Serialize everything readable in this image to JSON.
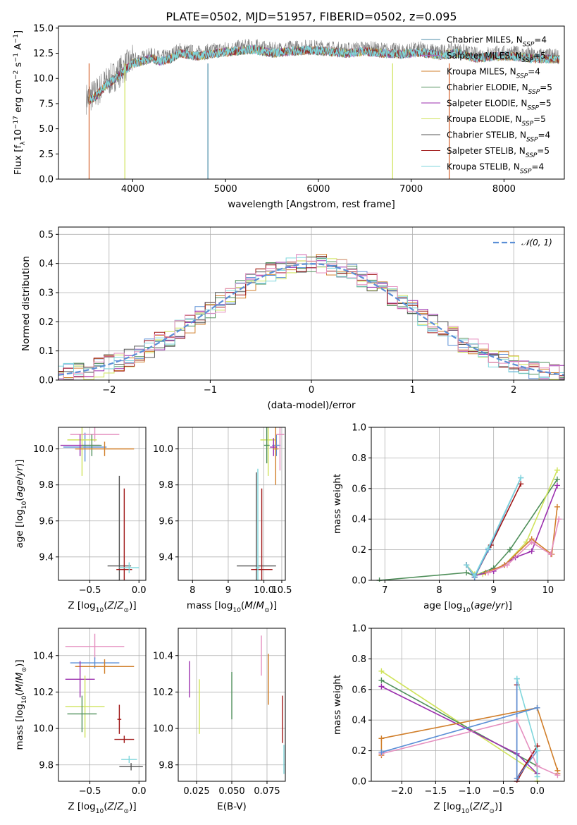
{
  "chart_data": [
    {
      "id": "spectrum",
      "type": "line",
      "title": "PLATE=0502, MJD=51957, FIBERID=0502, z=0.095",
      "xlabel": "wavelength [Angstrom, rest frame]",
      "ylabel": "Flux [f_λ 10^-17 erg cm^-2 s^-1 A^-1]",
      "xlim": [
        3200,
        8650
      ],
      "ylim": [
        0,
        15.2
      ],
      "xticks": [
        4000,
        5000,
        6000,
        7000,
        8000
      ],
      "yticks": [
        0.0,
        2.5,
        5.0,
        7.5,
        10.0,
        12.5,
        15.0
      ],
      "ytick_labels": [
        "0.0",
        "2.5",
        "5.0",
        "7.5",
        "10.0",
        "12.5",
        "15.0"
      ],
      "data_spectrum": {
        "name": "data",
        "color": "#7f7f7f",
        "x": [
          3500,
          3600,
          3700,
          3800,
          3900,
          4000,
          4100,
          4200,
          4300,
          4400,
          4500,
          4700,
          4900,
          5100,
          5300,
          5500,
          5700,
          5900,
          6100,
          6300,
          6500,
          6700,
          6900,
          7100,
          7300,
          7500,
          7700,
          7900,
          8100,
          8300,
          8600
        ],
        "y": [
          8.0,
          8.5,
          9.5,
          10.2,
          11.0,
          11.8,
          12.0,
          12.3,
          12.0,
          12.2,
          12.8,
          12.5,
          12.8,
          13.0,
          13.2,
          12.8,
          13.0,
          13.1,
          13.0,
          12.8,
          13.0,
          12.8,
          12.7,
          12.9,
          12.6,
          12.8,
          12.3,
          12.5,
          12.5,
          12.3,
          12.2
        ]
      },
      "legend_position": "upper right",
      "series": [
        {
          "name": "Chabrier MILES, N",
          "sub": "SSP",
          "tail": "=4",
          "color": "#4c8ea8"
        },
        {
          "name": "Salpeter MILES, N",
          "sub": "SSP",
          "tail": "=5",
          "color": "#a66ac1"
        },
        {
          "name": "Kroupa MILES, N",
          "sub": "SSP",
          "tail": "=4",
          "color": "#d17f2b"
        },
        {
          "name": "Chabrier ELODIE, N",
          "sub": "SSP",
          "tail": "=5",
          "color": "#4f8f5a"
        },
        {
          "name": "Salpeter ELODIE, N",
          "sub": "SSP",
          "tail": "=5",
          "color": "#9b2fae"
        },
        {
          "name": "Kroupa ELODIE, N",
          "sub": "SSP",
          "tail": "=5",
          "color": "#cfe35a"
        },
        {
          "name": "Chabrier STELIB, N",
          "sub": "SSP",
          "tail": "=4",
          "color": "#555555"
        },
        {
          "name": "Salpeter STELIB, N",
          "sub": "SSP",
          "tail": "=5",
          "color": "#a01818"
        },
        {
          "name": "Kroupa STELIB, N",
          "sub": "SSP",
          "tail": "=4",
          "color": "#7fd6dc"
        }
      ]
    },
    {
      "id": "residuals",
      "type": "line",
      "xlabel": "(data-model)/error",
      "ylabel": "Normed distribution",
      "xlim": [
        -2.5,
        2.5
      ],
      "ylim": [
        0,
        0.525
      ],
      "xticks": [
        -2,
        -1,
        0,
        1,
        2
      ],
      "xtick_labels": [
        "−2",
        "−1",
        "0",
        "1",
        "2"
      ],
      "yticks": [
        0.0,
        0.1,
        0.2,
        0.3,
        0.4,
        0.5
      ],
      "ytick_labels": [
        "0.0",
        "0.1",
        "0.2",
        "0.3",
        "0.4",
        "0.5"
      ],
      "grid": true,
      "legend_position": "upper right",
      "reference": {
        "name": "𝒩(0, 1)",
        "color": "#5b8fd6",
        "style": "dashed"
      },
      "bin_width": 0.1,
      "hist_colors": [
        "#5b8fd6",
        "#d17f2b",
        "#4f8f5a",
        "#9b2fae",
        "#cfe35a",
        "#555555",
        "#a01818",
        "#7fd6dc",
        "#e58fbf"
      ]
    },
    {
      "id": "age-metallicity",
      "type": "scatter",
      "xlabel": "Z [log10(Z/Z⊙)]",
      "ylabel": "age [log10(age/yr)]",
      "xlim": [
        -0.82,
        0.07
      ],
      "ylim": [
        9.27,
        10.12
      ],
      "xticks": [
        -0.5,
        0.0
      ],
      "xtick_labels": [
        "−0.5",
        "0.0"
      ],
      "yticks": [
        9.4,
        9.6,
        9.8,
        10.0
      ],
      "ytick_labels": [
        "9.4",
        "9.6",
        "9.8",
        "10.0"
      ],
      "grid": true,
      "points": [
        {
          "x": -0.55,
          "y": 10.01,
          "xerr": 0.22,
          "yerr": 0.08,
          "color": "#5b8fd6"
        },
        {
          "x": -0.45,
          "y": 10.08,
          "xerr": 0.25,
          "yerr": 0.04,
          "color": "#e58fbf"
        },
        {
          "x": -0.58,
          "y": 10.05,
          "xerr": 0.15,
          "yerr": 0.2,
          "color": "#cfe35a"
        },
        {
          "x": -0.6,
          "y": 10.02,
          "xerr": 0.2,
          "yerr": 0.06,
          "color": "#9b2fae"
        },
        {
          "x": -0.48,
          "y": 10.02,
          "xerr": 0.1,
          "yerr": 0.06,
          "color": "#4f8f5a"
        },
        {
          "x": -0.35,
          "y": 10.0,
          "xerr": 0.3,
          "yerr": 0.04,
          "color": "#d17f2b"
        },
        {
          "x": -0.2,
          "y": 9.35,
          "xerr": 0.12,
          "yerr": 0.5,
          "color": "#555555"
        },
        {
          "x": -0.15,
          "y": 9.33,
          "xerr": 0.08,
          "yerr": 0.45,
          "color": "#a01818"
        },
        {
          "x": -0.1,
          "y": 9.34,
          "xerr": 0.1,
          "yerr": 0.03,
          "color": "#7fd6dc"
        }
      ]
    },
    {
      "id": "age-mass",
      "type": "scatter",
      "xlabel": "mass [log10(M/M⊙)]",
      "xlim": [
        7.6,
        10.6
      ],
      "ylim": [
        9.27,
        10.12
      ],
      "xticks": [
        8.0,
        9.0,
        10.0,
        10.5
      ],
      "xtick_labels": [
        "8",
        "9",
        "10.0",
        "10.5"
      ],
      "yticks": [
        9.4,
        9.6,
        9.8,
        10.0
      ],
      "ytick_labels": [
        "9.4",
        "9.6",
        "9.8",
        "10.0"
      ],
      "grid": true,
      "points": [
        {
          "x": 10.35,
          "y": 10.02,
          "xerr": 0.12,
          "yerr": 0.06,
          "color": "#5b8fd6"
        },
        {
          "x": 10.45,
          "y": 10.08,
          "xerr": 0.12,
          "yerr": 0.2,
          "color": "#e58fbf"
        },
        {
          "x": 10.12,
          "y": 10.05,
          "xerr": 0.22,
          "yerr": 0.2,
          "color": "#cfe35a"
        },
        {
          "x": 10.27,
          "y": 10.01,
          "xerr": 0.1,
          "yerr": 0.05,
          "color": "#9b2fae"
        },
        {
          "x": 10.08,
          "y": 10.02,
          "xerr": 0.08,
          "yerr": 0.1,
          "color": "#4f8f5a"
        },
        {
          "x": 10.33,
          "y": 10.0,
          "xerr": 0.08,
          "yerr": 0.2,
          "color": "#d17f2b"
        },
        {
          "x": 9.79,
          "y": 9.35,
          "xerr": 0.55,
          "yerr": 0.52,
          "color": "#555555"
        },
        {
          "x": 9.94,
          "y": 9.33,
          "xerr": 0.3,
          "yerr": 0.45,
          "color": "#a01818"
        },
        {
          "x": 9.83,
          "y": 9.34,
          "xerr": 0.05,
          "yerr": 0.55,
          "color": "#7fd6dc"
        }
      ]
    },
    {
      "id": "massweight-age",
      "type": "line",
      "xlabel": "age [log10(age/yr)]",
      "ylabel": "mass weight",
      "xlim": [
        6.75,
        10.3
      ],
      "ylim": [
        0,
        1.0
      ],
      "xticks": [
        7,
        8,
        9,
        10
      ],
      "yticks": [
        0.0,
        0.2,
        0.4,
        0.6,
        0.8,
        1.0
      ],
      "ytick_labels": [
        "0.0",
        "0.2",
        "0.4",
        "0.6",
        "0.8",
        "1.0"
      ],
      "grid": true,
      "series": [
        {
          "color": "#4f8f5a",
          "x": [
            6.9,
            8.5,
            8.65,
            9.0,
            9.3,
            10.17
          ],
          "y": [
            0.0,
            0.05,
            0.03,
            0.08,
            0.2,
            0.66
          ]
        },
        {
          "color": "#cfe35a",
          "x": [
            8.5,
            8.65,
            8.8,
            9.2,
            9.6,
            10.17
          ],
          "y": [
            0.1,
            0.04,
            0.04,
            0.1,
            0.25,
            0.72
          ]
        },
        {
          "color": "#9b2fae",
          "x": [
            8.5,
            8.65,
            9.0,
            9.4,
            9.7,
            10.17
          ],
          "y": [
            0.1,
            0.03,
            0.06,
            0.15,
            0.19,
            0.62
          ]
        },
        {
          "color": "#a01818",
          "x": [
            8.5,
            8.65,
            8.95,
            9.5
          ],
          "y": [
            0.1,
            0.02,
            0.23,
            0.63
          ]
        },
        {
          "color": "#5b8fd6",
          "x": [
            8.5,
            8.65,
            8.9,
            9.5
          ],
          "y": [
            0.1,
            0.02,
            0.2,
            0.67
          ]
        },
        {
          "color": "#7fd6dc",
          "x": [
            8.5,
            8.65,
            8.9,
            9.5
          ],
          "y": [
            0.1,
            0.03,
            0.21,
            0.67
          ]
        },
        {
          "color": "#d17f2b",
          "x": [
            8.85,
            9.2,
            9.7,
            10.07,
            10.17
          ],
          "y": [
            0.05,
            0.1,
            0.27,
            0.17,
            0.48
          ]
        },
        {
          "color": "#e58fbf",
          "x": [
            8.9,
            9.25,
            9.7,
            10.05,
            10.2
          ],
          "y": [
            0.05,
            0.1,
            0.25,
            0.17,
            0.4
          ]
        }
      ]
    },
    {
      "id": "mass-metallicity",
      "type": "scatter",
      "xlabel": "Z [log10(Z/Z⊙)]",
      "ylabel": "mass [log10(M/M⊙)]",
      "xlim": [
        -0.82,
        0.07
      ],
      "ylim": [
        9.71,
        10.55
      ],
      "xticks": [
        -0.5,
        0.0
      ],
      "xtick_labels": [
        "−0.5",
        "0.0"
      ],
      "yticks": [
        9.8,
        10.0,
        10.2,
        10.4
      ],
      "ytick_labels": [
        "9.8",
        "10.0",
        "10.2",
        "10.4"
      ],
      "grid": true,
      "points": [
        {
          "x": -0.45,
          "y": 10.45,
          "xerr": 0.3,
          "yerr": 0.07,
          "color": "#e58fbf"
        },
        {
          "x": -0.45,
          "y": 10.36,
          "xerr": 0.25,
          "yerr": 0.03,
          "color": "#5b8fd6"
        },
        {
          "x": -0.35,
          "y": 10.34,
          "xerr": 0.3,
          "yerr": 0.04,
          "color": "#d17f2b"
        },
        {
          "x": -0.6,
          "y": 10.27,
          "xerr": 0.15,
          "yerr": 0.1,
          "color": "#9b2fae"
        },
        {
          "x": -0.55,
          "y": 10.12,
          "xerr": 0.2,
          "yerr": 0.17,
          "color": "#cfe35a"
        },
        {
          "x": -0.58,
          "y": 10.08,
          "xerr": 0.15,
          "yerr": 0.1,
          "color": "#4f8f5a"
        },
        {
          "x": -0.2,
          "y": 10.05,
          "xerr": 0.02,
          "yerr": 0.08,
          "color": "#a01818"
        },
        {
          "x": -0.15,
          "y": 9.94,
          "xerr": 0.1,
          "yerr": 0.02,
          "color": "#a01818"
        },
        {
          "x": -0.1,
          "y": 9.83,
          "xerr": 0.08,
          "yerr": 0.02,
          "color": "#7fd6dc"
        },
        {
          "x": -0.08,
          "y": 9.79,
          "xerr": 0.12,
          "yerr": 0.02,
          "color": "#555555"
        }
      ]
    },
    {
      "id": "mass-extinction",
      "type": "scatter",
      "xlabel": "E(B-V)",
      "xlim": [
        0.012,
        0.088
      ],
      "ylim": [
        9.71,
        10.55
      ],
      "xticks": [
        0.025,
        0.05,
        0.075
      ],
      "xtick_labels": [
        "0.025",
        "0.050",
        "0.075"
      ],
      "yticks": [
        9.8,
        10.0,
        10.2,
        10.4
      ],
      "ytick_labels": [
        "9.8",
        "10.0",
        "10.2",
        "10.4"
      ],
      "grid": true,
      "points": [
        {
          "x": 0.02,
          "y": 10.27,
          "xerr": 0.0,
          "yerr": 0.1,
          "color": "#9b2fae"
        },
        {
          "x": 0.027,
          "y": 10.12,
          "xerr": 0.0,
          "yerr": 0.15,
          "color": "#cfe35a"
        },
        {
          "x": 0.05,
          "y": 10.18,
          "xerr": 0.0,
          "yerr": 0.13,
          "color": "#4f8f5a"
        },
        {
          "x": 0.071,
          "y": 10.4,
          "xerr": 0.0,
          "yerr": 0.11,
          "color": "#e58fbf"
        },
        {
          "x": 0.076,
          "y": 10.27,
          "xerr": 0.0,
          "yerr": 0.14,
          "color": "#d17f2b"
        },
        {
          "x": 0.086,
          "y": 10.05,
          "xerr": 0.0,
          "yerr": 0.13,
          "color": "#a01818"
        },
        {
          "x": 0.087,
          "y": 9.83,
          "xerr": 0.0,
          "yerr": 0.08,
          "color": "#7fd6dc"
        }
      ]
    },
    {
      "id": "massweight-metallicity",
      "type": "line",
      "xlabel": "Z [log10(Z/Z⊙)]",
      "ylabel": "mass weight",
      "xlim": [
        -2.45,
        0.4
      ],
      "ylim": [
        0,
        1.0
      ],
      "xticks": [
        -2.0,
        -1.5,
        -1.0,
        -0.5,
        0.0
      ],
      "xtick_labels": [
        "−2.0",
        "−1.5",
        "−1.0",
        "−0.5",
        "0.0"
      ],
      "yticks": [
        0.0,
        0.2,
        0.4,
        0.6,
        0.8,
        1.0
      ],
      "ytick_labels": [
        "0.0",
        "0.2",
        "0.4",
        "0.6",
        "0.8",
        "1.0"
      ],
      "grid": true,
      "series": [
        {
          "color": "#cfe35a",
          "x": [
            -2.3,
            0.0,
            0.0
          ],
          "y": [
            0.72,
            0.05,
            0.0
          ]
        },
        {
          "color": "#4f8f5a",
          "x": [
            -2.3,
            0.0,
            0.0
          ],
          "y": [
            0.66,
            0.1,
            0.05
          ]
        },
        {
          "color": "#9b2fae",
          "x": [
            -2.3,
            -0.3,
            0.0
          ],
          "y": [
            0.62,
            0.18,
            0.05
          ]
        },
        {
          "color": "#a01818",
          "x": [
            -0.3,
            -0.3,
            0.0,
            -0.3
          ],
          "y": [
            0.63,
            0.02,
            0.23,
            0.0
          ]
        },
        {
          "color": "#5b8fd6",
          "x": [
            -0.3,
            -0.3,
            0.0,
            0.0
          ],
          "y": [
            0.67,
            0.02,
            0.2,
            0.1
          ]
        },
        {
          "color": "#7fd6dc",
          "x": [
            -0.3,
            0.0,
            0.0
          ],
          "y": [
            0.67,
            0.2,
            0.03
          ]
        },
        {
          "color": "#d17f2b",
          "x": [
            -2.3,
            -2.3,
            0.0,
            0.3,
            0.3
          ],
          "y": [
            0.17,
            0.28,
            0.48,
            0.07,
            0.05
          ]
        },
        {
          "color": "#e58fbf",
          "x": [
            -2.3,
            -0.3,
            0.0,
            0.3
          ],
          "y": [
            0.18,
            0.4,
            0.1,
            0.04
          ]
        },
        {
          "color": "#5b8fd6",
          "x": [
            -2.3,
            0.0
          ],
          "y": [
            0.19,
            0.48
          ]
        }
      ]
    }
  ]
}
